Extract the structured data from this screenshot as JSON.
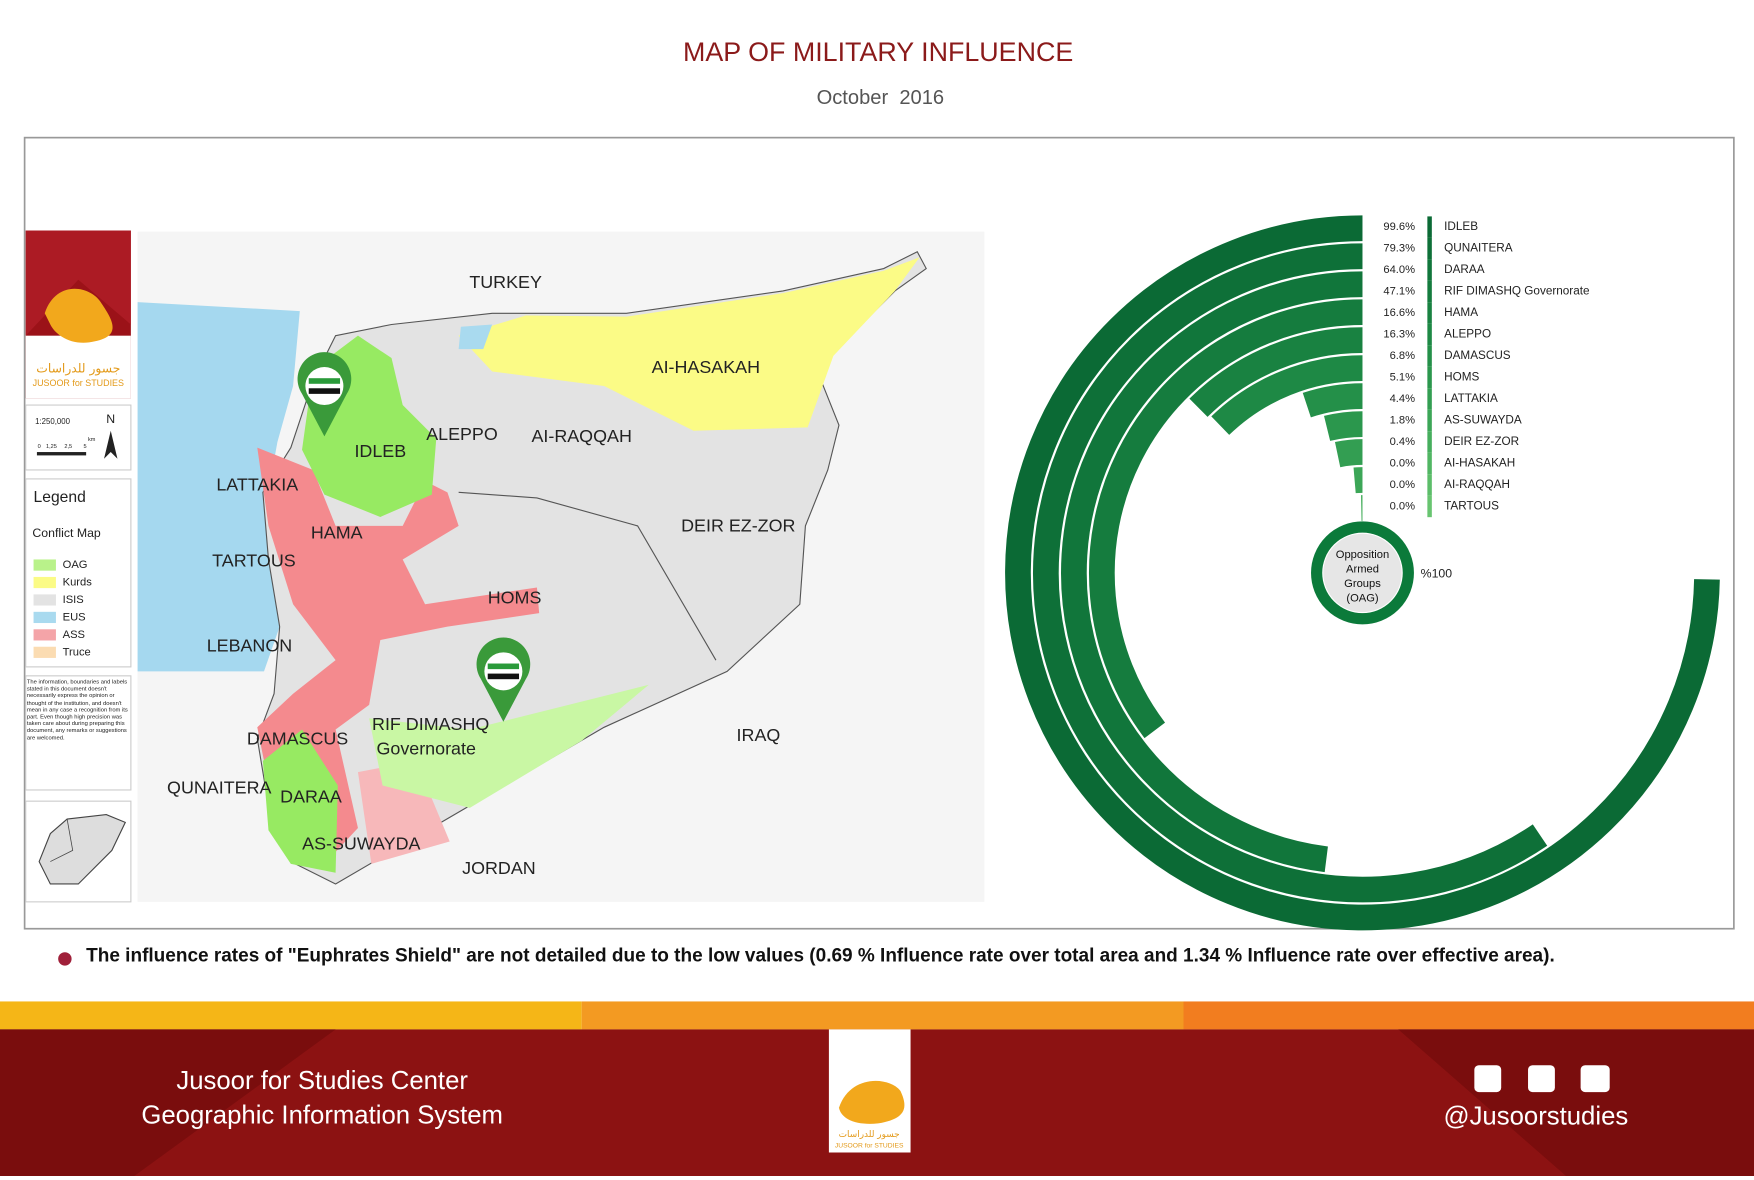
{
  "header": {
    "title": "MAP OF MILITARY INFLUENCE",
    "subtitle": "October  2016"
  },
  "logo": {
    "name_ar": "جسور للدراسات",
    "name_en": "JUSOOR for STUDIES"
  },
  "map": {
    "scale": "1:250,000",
    "north": "N",
    "scale_ticks": [
      "0",
      "1,25",
      "2,5",
      "5"
    ],
    "scale_unit": "km",
    "labels": [
      "TURKEY",
      "AI-HASAKAH",
      "ALEPPO",
      "AI-RAQQAH",
      "IDLEB",
      "LATTAKIA",
      "HAMA",
      "TARTOUS",
      "DEIR EZ-ZOR",
      "HOMS",
      "LEBANON",
      "DAMASCUS",
      "RIF DIMASHQ",
      "Governorate",
      "IRAQ",
      "QUNAITERA",
      "DARAA",
      "AS-SUWAYDA",
      "JORDAN"
    ]
  },
  "legend": {
    "title": "Legend",
    "subtitle": "Conflict Map",
    "items": [
      {
        "label": "OAG",
        "color": "#b9f28a"
      },
      {
        "label": "Kurds",
        "color": "#fbfb86"
      },
      {
        "label": "ISIS",
        "color": "#e3e3e3"
      },
      {
        "label": "EUS",
        "color": "#a9daef"
      },
      {
        "label": "ASS",
        "color": "#f4a4a8"
      },
      {
        "label": "Truce",
        "color": "#fbdcb2"
      }
    ],
    "disclaimer": "The information, boundaries and labels stated in this document doesn't necessarily express the opinion or thought of the institution, and doesn't mean in any case a recognition from its part. Even though high precision was taken care about during preparing this document, any remarks or suggestions are welcomed."
  },
  "chart_data": {
    "type": "radial_bar",
    "categories": [
      "IDLEB",
      "QUNAITERA",
      "DARAA",
      "RIF DIMASHQ Governorate",
      "HAMA",
      "ALEPPO",
      "DAMASCUS",
      "HOMS",
      "LATTAKIA",
      "AS-SUWAYDA",
      "DEIR EZ-ZOR",
      "AI-HASAKAH",
      "AI-RAQQAH",
      "TARTOUS"
    ],
    "values": [
      99.6,
      79.3,
      64.0,
      47.1,
      16.6,
      16.3,
      6.8,
      5.1,
      4.4,
      1.8,
      0.4,
      0.0,
      0.0,
      0.0
    ],
    "value_labels": [
      "99.6%",
      "79.3%",
      "64.0%",
      "47.1%",
      "16.6%",
      "16.3%",
      "6.8%",
      "5.1%",
      "4.4%",
      "1.8%",
      "0.4%",
      "0.0%",
      "0.0%",
      "0.0%"
    ],
    "colors": [
      "#0b6a35",
      "#0e7038",
      "#11763b",
      "#157c3e",
      "#198241",
      "#1e8945",
      "#249049",
      "#2b974d",
      "#339e52",
      "#3ca657",
      "#46ae5d",
      "#51b663",
      "#5cbd69",
      "#68c470"
    ],
    "lim": [
      0,
      100
    ],
    "center": {
      "lines": [
        "Opposition",
        "Armed",
        "Groups",
        "(OAG)"
      ],
      "value": 100,
      "value_label": "%100",
      "color": "#0b7a3a"
    }
  },
  "note": "The influence rates of \"Euphrates Shield\" are not detailed due to the low values (0.69 % Influence rate over total area and 1.34 % Influence rate over effective area).",
  "footer": {
    "line1": "Jusoor for Studies Center",
    "line2": "Geographic Information System",
    "handle": "@Jusoorstudies"
  }
}
